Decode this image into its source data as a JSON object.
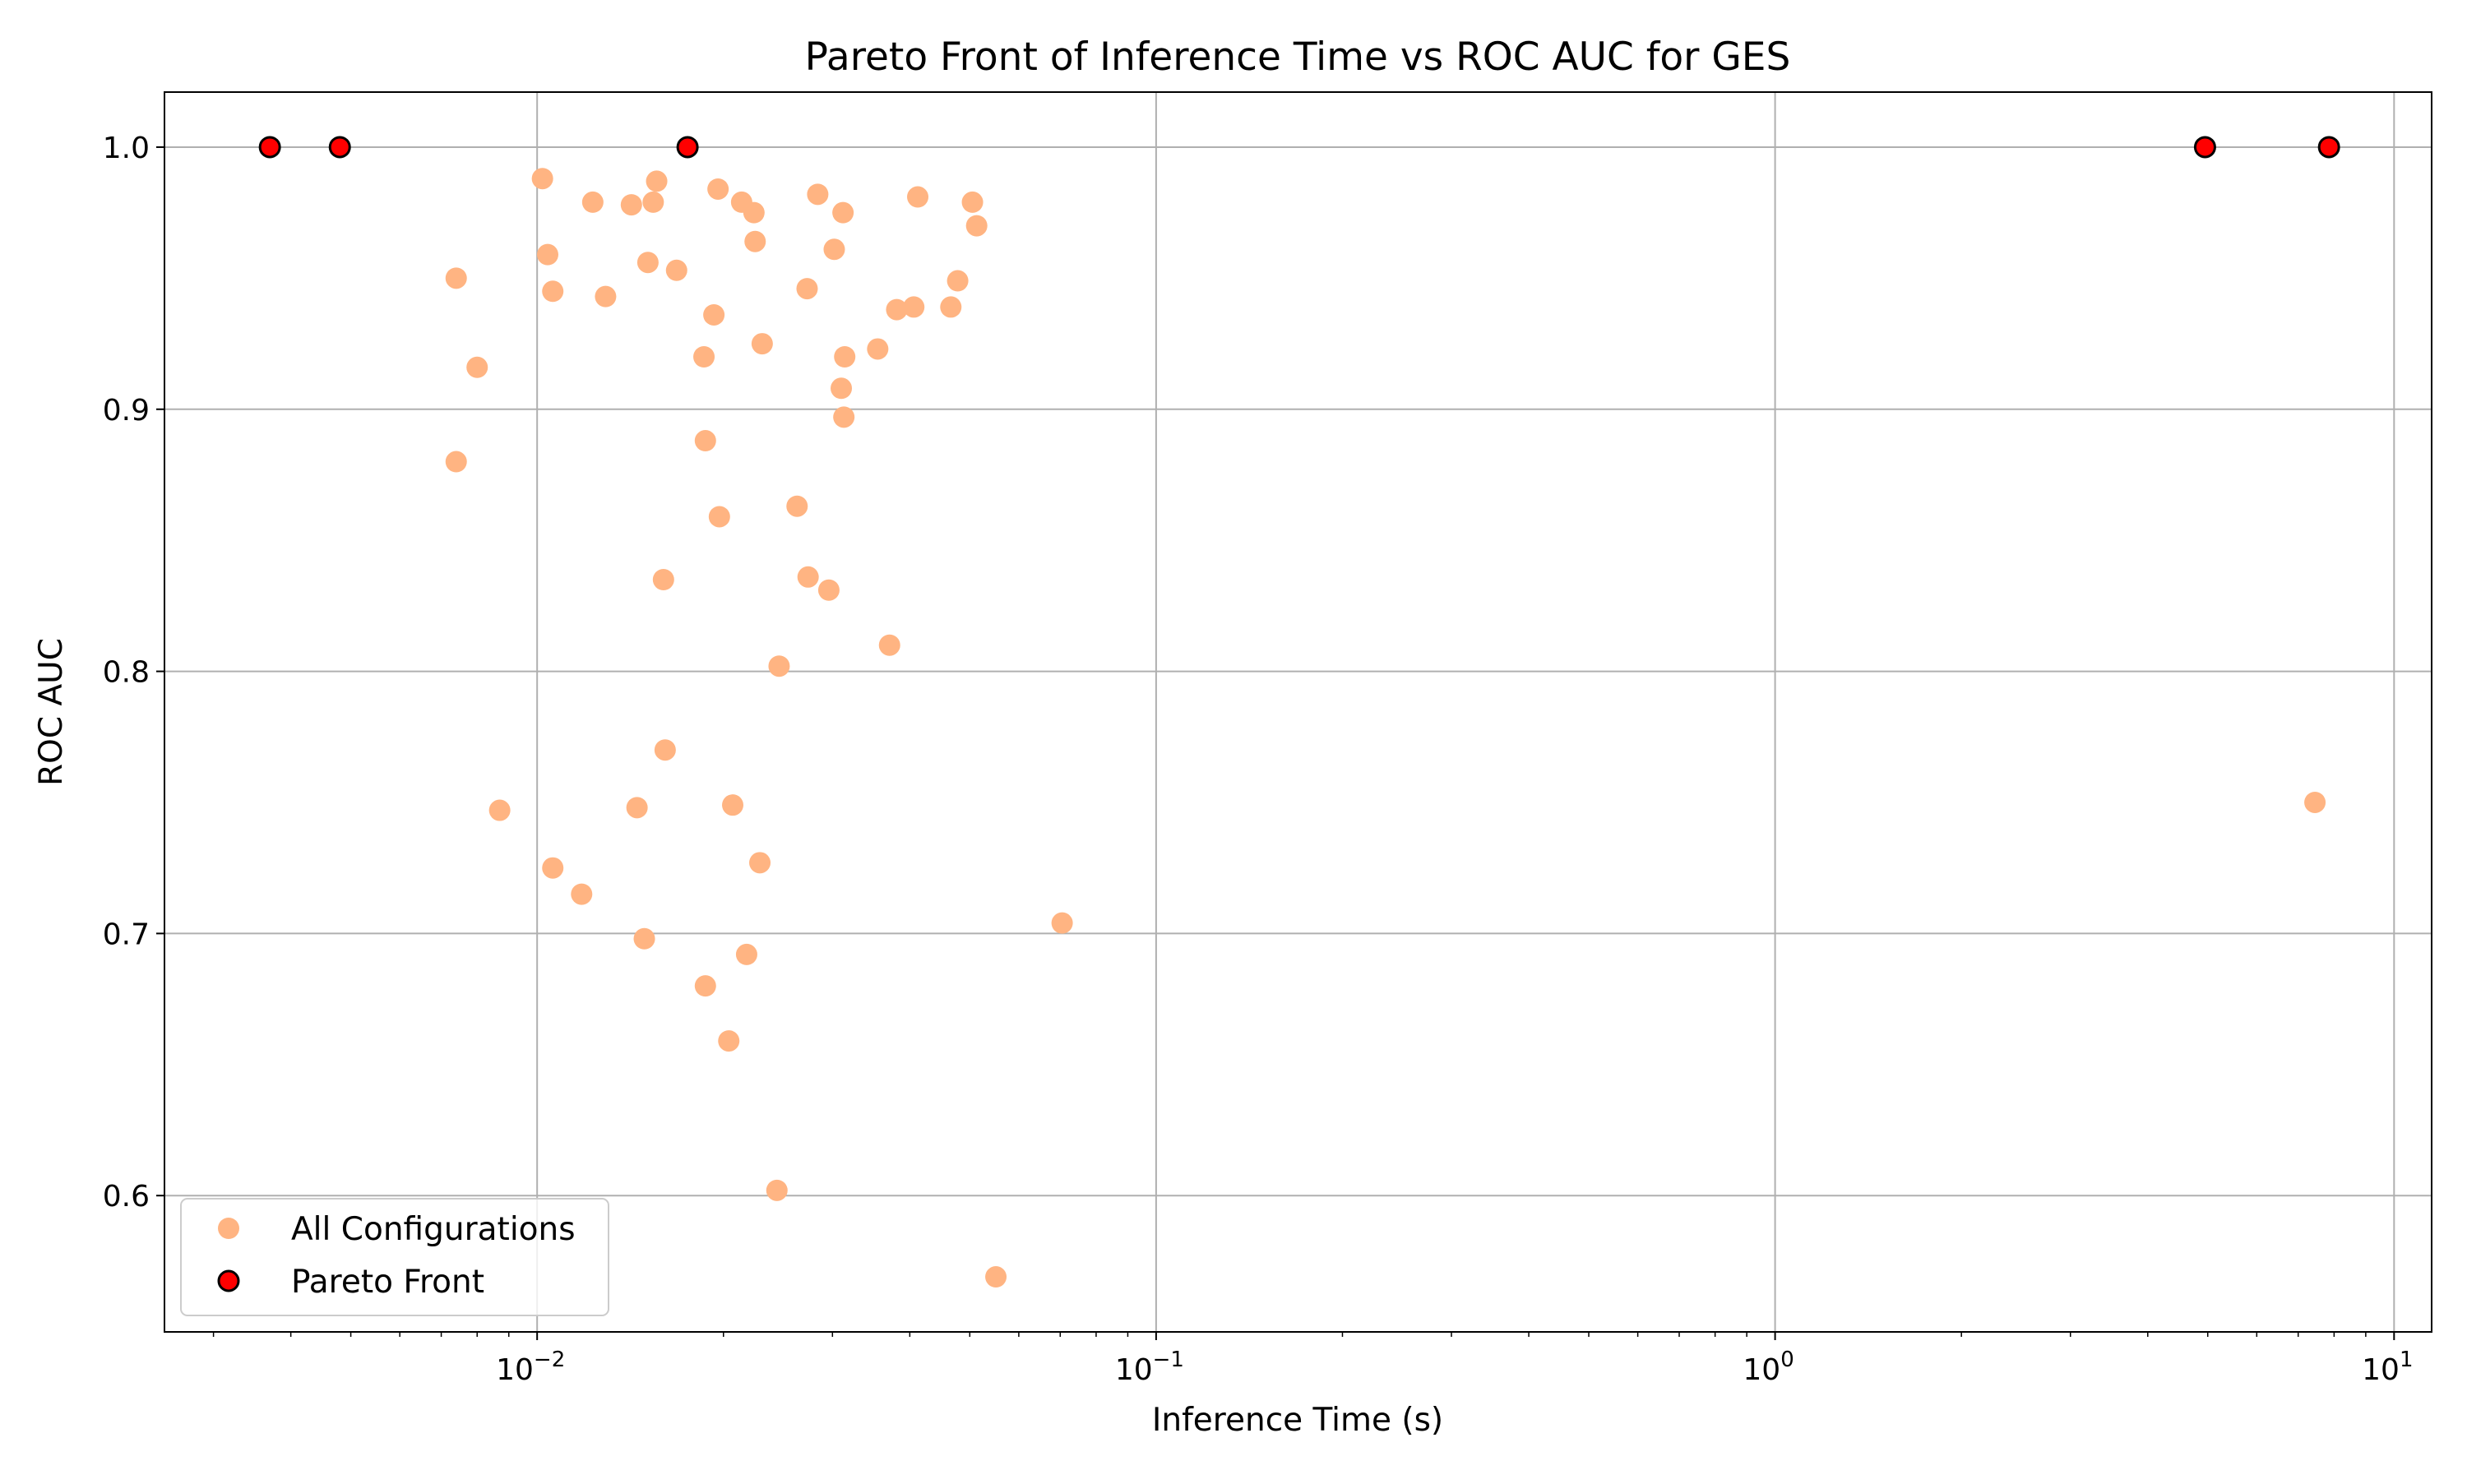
{
  "chart_data": {
    "type": "scatter",
    "title": "Pareto Front of Inference Time vs ROC AUC for GES",
    "xlabel": "Inference Time (s)",
    "ylabel": "ROC AUC",
    "xscale": "log",
    "xlim": [
      0.0025,
      11.5
    ],
    "ylim": [
      0.548,
      1.021
    ],
    "grid": true,
    "legend_position": "lower-left",
    "x_ticks": [
      {
        "value": 0.01,
        "label": "10",
        "exp": "−2"
      },
      {
        "value": 0.1,
        "label": "10",
        "exp": "−1"
      },
      {
        "value": 1,
        "label": "10",
        "exp": "0"
      },
      {
        "value": 10,
        "label": "10",
        "exp": "1"
      }
    ],
    "y_ticks": [
      {
        "value": 0.6,
        "label": "0.6"
      },
      {
        "value": 0.7,
        "label": "0.7"
      },
      {
        "value": 0.8,
        "label": "0.8"
      },
      {
        "value": 0.9,
        "label": "0.9"
      },
      {
        "value": 1.0,
        "label": "1.0"
      }
    ],
    "series": [
      {
        "name": "All Configurations",
        "color": "#ffb482",
        "points": [
          [
            0.0102,
            0.988
          ],
          [
            0.0123,
            0.979
          ],
          [
            0.0142,
            0.978
          ],
          [
            0.0156,
            0.987
          ],
          [
            0.0154,
            0.979
          ],
          [
            0.0196,
            0.984
          ],
          [
            0.0214,
            0.979
          ],
          [
            0.0224,
            0.975
          ],
          [
            0.0284,
            0.982
          ],
          [
            0.0312,
            0.975
          ],
          [
            0.0412,
            0.981
          ],
          [
            0.0505,
            0.979
          ],
          [
            0.0513,
            0.97
          ],
          [
            0.0104,
            0.959
          ],
          [
            0.0151,
            0.956
          ],
          [
            0.0168,
            0.953
          ],
          [
            0.0225,
            0.964
          ],
          [
            0.0302,
            0.961
          ],
          [
            0.0074,
            0.95
          ],
          [
            0.0106,
            0.945
          ],
          [
            0.0129,
            0.943
          ],
          [
            0.0193,
            0.936
          ],
          [
            0.0273,
            0.946
          ],
          [
            0.0381,
            0.938
          ],
          [
            0.0406,
            0.939
          ],
          [
            0.0466,
            0.939
          ],
          [
            0.0478,
            0.949
          ],
          [
            0.008,
            0.916
          ],
          [
            0.0186,
            0.92
          ],
          [
            0.0231,
            0.925
          ],
          [
            0.0314,
            0.92
          ],
          [
            0.0355,
            0.923
          ],
          [
            0.031,
            0.908
          ],
          [
            0.0313,
            0.897
          ],
          [
            0.0074,
            0.88
          ],
          [
            0.0187,
            0.888
          ],
          [
            0.0197,
            0.859
          ],
          [
            0.0263,
            0.863
          ],
          [
            0.016,
            0.835
          ],
          [
            0.0274,
            0.836
          ],
          [
            0.0296,
            0.831
          ],
          [
            0.0371,
            0.81
          ],
          [
            0.0246,
            0.802
          ],
          [
            0.0161,
            0.77
          ],
          [
            0.0087,
            0.747
          ],
          [
            0.0145,
            0.748
          ],
          [
            0.0207,
            0.749
          ],
          [
            0.0106,
            0.725
          ],
          [
            0.0229,
            0.727
          ],
          [
            0.0118,
            0.715
          ],
          [
            0.0149,
            0.698
          ],
          [
            0.0218,
            0.692
          ],
          [
            0.0187,
            0.68
          ],
          [
            0.0204,
            0.659
          ],
          [
            0.0705,
            0.704
          ],
          [
            0.0244,
            0.602
          ],
          [
            0.0551,
            0.569
          ],
          [
            7.45,
            0.75
          ]
        ]
      },
      {
        "name": "Pareto Front",
        "color": "#ff0000",
        "edge_color": "#000000",
        "points": [
          [
            0.0037,
            1.0
          ],
          [
            0.0048,
            1.0
          ],
          [
            0.0175,
            1.0
          ],
          [
            4.95,
            1.0
          ],
          [
            7.85,
            1.0
          ]
        ]
      }
    ]
  }
}
